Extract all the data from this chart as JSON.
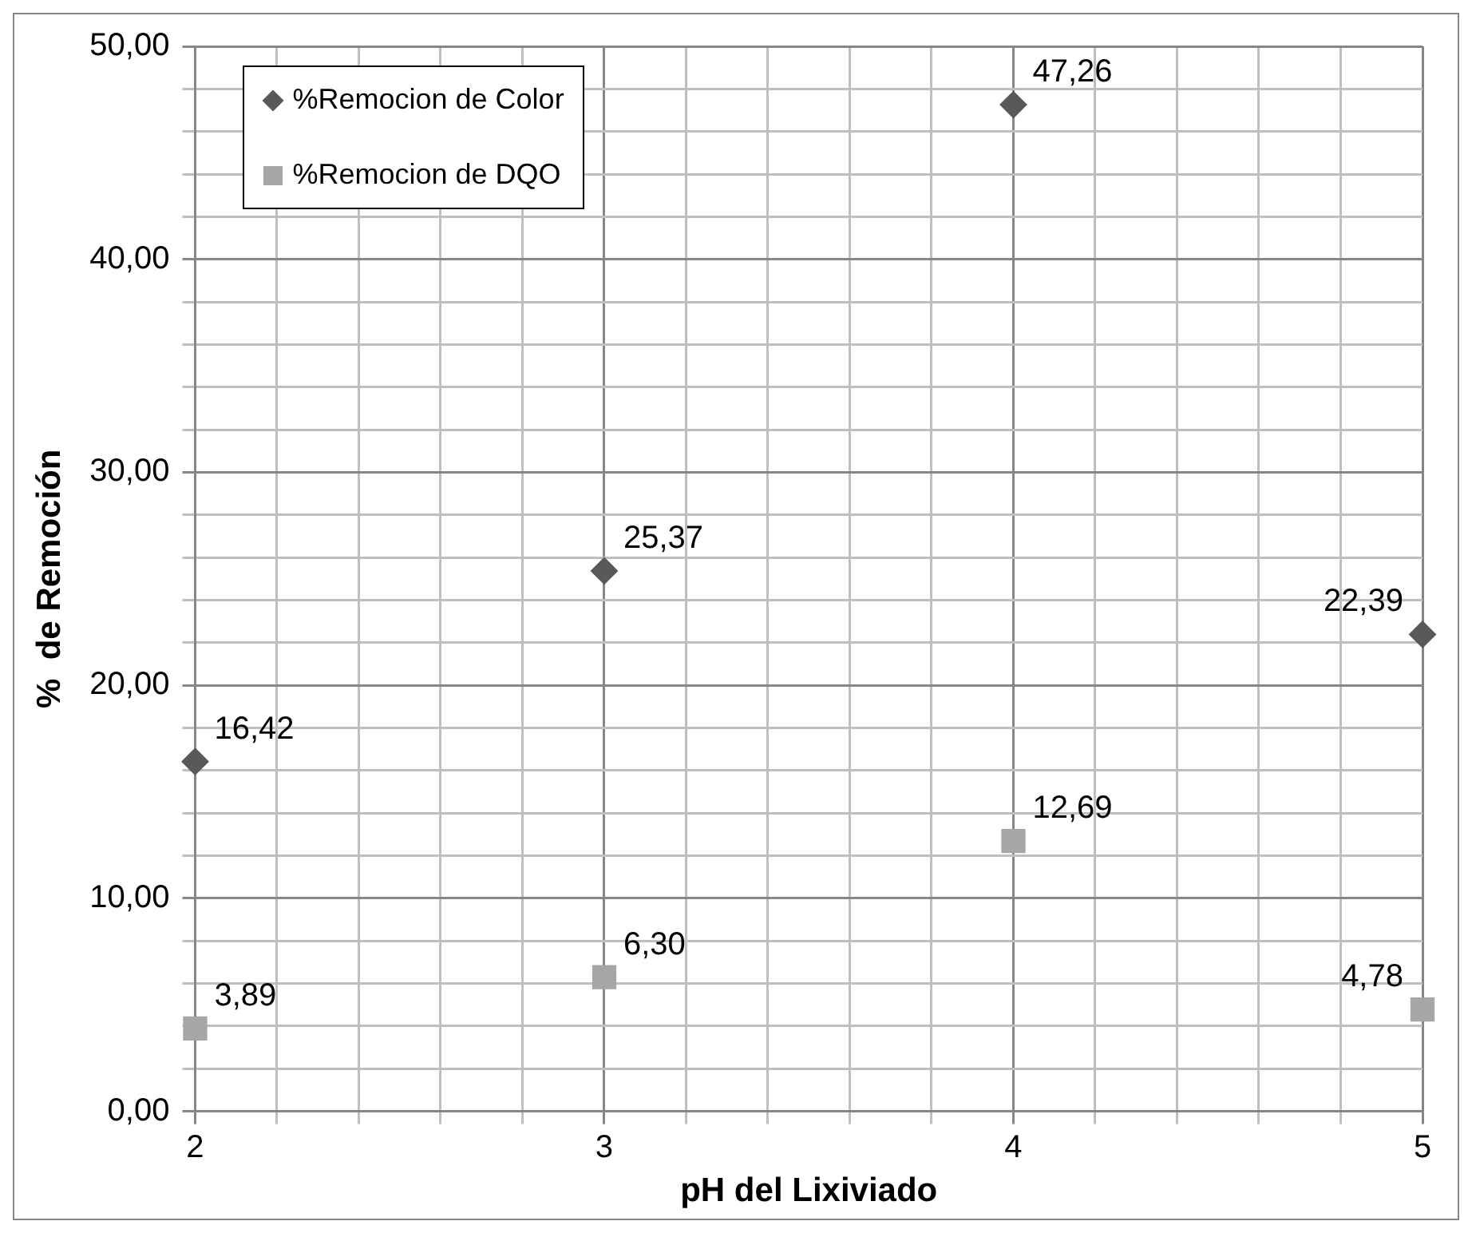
{
  "chart_data": {
    "type": "scatter",
    "xlabel": "pH del Lixiviado",
    "ylabel": "%  de Remoción",
    "x": [
      2,
      3,
      4,
      5
    ],
    "series": [
      {
        "name": "%Remocion de Color",
        "color": "#595959",
        "marker": "diamond",
        "values": [
          16.42,
          25.37,
          47.26,
          22.39
        ],
        "value_labels": [
          "16,42",
          "25,37",
          "47,26",
          "22,39"
        ]
      },
      {
        "name": "%Remocion de DQO",
        "color": "#a6a6a6",
        "marker": "square",
        "values": [
          3.89,
          6.3,
          12.69,
          4.78
        ],
        "value_labels": [
          "3,89",
          "6,30",
          "12,69",
          "4,78"
        ]
      }
    ],
    "xlim": [
      2,
      5
    ],
    "xticks": [
      2,
      {
        "value": 2.2,
        "label": null
      },
      {
        "value": 2.4,
        "label": null
      },
      {
        "value": 2.6,
        "label": null
      },
      {
        "value": 2.8,
        "label": null
      },
      3,
      {
        "value": 3.2,
        "label": null
      },
      {
        "value": 3.4,
        "label": null
      },
      {
        "value": 3.6,
        "label": null
      },
      {
        "value": 3.8,
        "label": null
      },
      4,
      {
        "value": 4.2,
        "label": null
      },
      {
        "value": 4.4,
        "label": null
      },
      {
        "value": 4.6,
        "label": null
      },
      {
        "value": 4.8,
        "label": null
      },
      5
    ],
    "ylim": [
      0,
      50
    ],
    "yticks": [
      {
        "value": 0,
        "label": "0,00"
      },
      {
        "value": 2,
        "label": null
      },
      {
        "value": 4,
        "label": null
      },
      {
        "value": 6,
        "label": null
      },
      {
        "value": 8,
        "label": null
      },
      {
        "value": 10,
        "label": "10,00"
      },
      {
        "value": 12,
        "label": null
      },
      {
        "value": 14,
        "label": null
      },
      {
        "value": 16,
        "label": null
      },
      {
        "value": 18,
        "label": null
      },
      {
        "value": 20,
        "label": "20,00"
      },
      {
        "value": 22,
        "label": null
      },
      {
        "value": 24,
        "label": null
      },
      {
        "value": 26,
        "label": null
      },
      {
        "value": 28,
        "label": null
      },
      {
        "value": 30,
        "label": "30,00"
      },
      {
        "value": 32,
        "label": null
      },
      {
        "value": 34,
        "label": null
      },
      {
        "value": 36,
        "label": null
      },
      {
        "value": 38,
        "label": null
      },
      {
        "value": 40,
        "label": "40,00"
      },
      {
        "value": 42,
        "label": null
      },
      {
        "value": 44,
        "label": null
      },
      {
        "value": 46,
        "label": null
      },
      {
        "value": 48,
        "label": null
      },
      {
        "value": 50,
        "label": "50,00"
      }
    ],
    "grid": true,
    "legend": "top left"
  }
}
